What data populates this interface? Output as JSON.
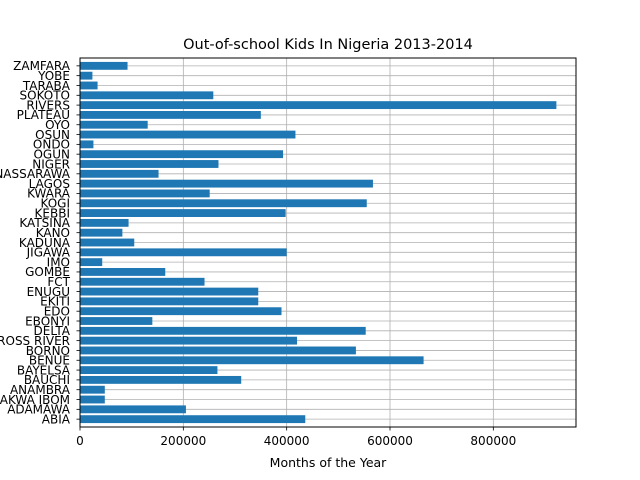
{
  "chart_data": {
    "type": "bar",
    "orientation": "horizontal",
    "title": "Out-of-school Kids In Nigeria 2013-2014",
    "xlabel": "Months of the Year",
    "ylabel": "",
    "xlim": [
      0,
      960000
    ],
    "xticks": [
      0,
      200000,
      400000,
      600000,
      800000
    ],
    "xtick_labels": [
      "0",
      "200000",
      "400000",
      "600000",
      "800000"
    ],
    "grid": true,
    "categories": [
      "ABIA",
      "ADAMAWA",
      "AKWA IBOM",
      "ANAMBRA",
      "BAUCHI",
      "BAYELSA",
      "BENUE",
      "BORNO",
      "CROSS RIVER",
      "DELTA",
      "EBONYI",
      "EDO",
      "EKITI",
      "ENUGU",
      "FCT",
      "GOMBE",
      "IMO",
      "JIGAWA",
      "KADUNA",
      "KANO",
      "KATSINA",
      "KEBBI",
      "KOGI",
      "KWARA",
      "LAGOS",
      "NASSARAWA",
      "NIGER",
      "OGUN",
      "ONDO",
      "OSUN",
      "OYO",
      "PLATEAU",
      "RIVERS",
      "SOKOTO",
      "TARABA",
      "YOBE",
      "ZAMFARA"
    ],
    "values": [
      436000,
      205000,
      48000,
      48000,
      312000,
      266000,
      665000,
      534000,
      420000,
      553000,
      140000,
      390000,
      345000,
      345000,
      241000,
      165000,
      43000,
      400000,
      105000,
      82000,
      94000,
      398000,
      555000,
      251000,
      567000,
      152000,
      268000,
      393000,
      26000,
      417000,
      131000,
      350000,
      922000,
      258000,
      34000,
      24000,
      92000
    ],
    "bar_color": "#1f77b4"
  }
}
